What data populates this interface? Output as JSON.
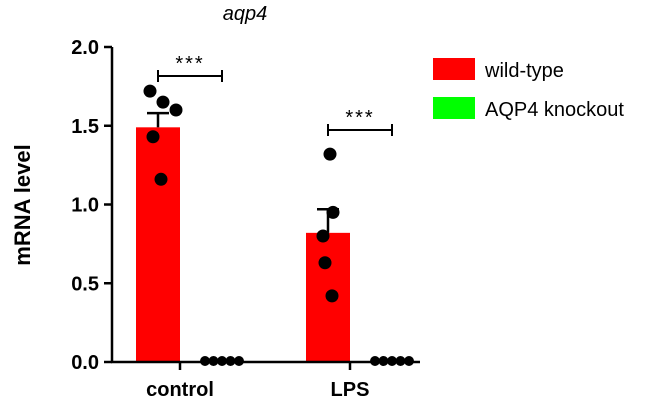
{
  "chart_data": {
    "type": "bar",
    "title": "aqp4",
    "xlabel": "",
    "ylabel": "mRNA level",
    "ylim": [
      0,
      2.0
    ],
    "yticks": [
      "0.0",
      "0.5",
      "1.0",
      "1.5",
      "2.0"
    ],
    "categories": [
      "control",
      "LPS"
    ],
    "series": [
      {
        "name": "wild-type",
        "color": "#ff0000",
        "values": [
          1.49,
          0.82
        ],
        "sem": [
          0.09,
          0.15
        ],
        "points": [
          [
            1.72,
            1.6,
            1.65,
            1.43,
            1.16
          ],
          [
            1.32,
            0.95,
            0.8,
            0.63,
            0.42
          ]
        ]
      },
      {
        "name": "AQP4 knockout",
        "color": "#00ff00",
        "values": [
          0.0,
          0.0
        ],
        "sem": [
          0.0,
          0.0
        ],
        "points": [
          [
            0.0,
            0.0,
            0.0,
            0.0,
            0.0
          ],
          [
            0.0,
            0.0,
            0.0,
            0.0,
            0.0
          ]
        ]
      }
    ],
    "significance": [
      "***",
      "***"
    ],
    "legend_position": "top-right",
    "grid": false
  }
}
